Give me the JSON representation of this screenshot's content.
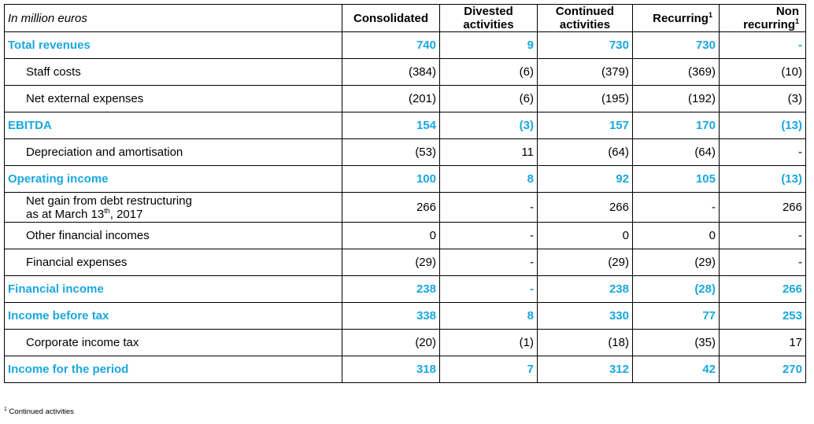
{
  "header": {
    "label": "In million euros",
    "col_consolidated": "Consolidated",
    "col_divested_1": "Divested",
    "col_divested_2": "activities",
    "col_continued_1": "Continued",
    "col_continued_2": "activities",
    "col_recurring": "Recurring",
    "col_recurring_sup": "1",
    "col_nonrec_1": "Non",
    "col_nonrec_2": "recurring",
    "col_nonrec_sup": "1"
  },
  "rows": [
    {
      "label": "Total revenues",
      "consolidated": "740",
      "divested": "9",
      "continued": "730",
      "recurring": "730",
      "nonrecurring": "-"
    },
    {
      "label": "Staff costs",
      "consolidated": "(384)",
      "divested": "(6)",
      "continued": "(379)",
      "recurring": "(369)",
      "nonrecurring": "(10)"
    },
    {
      "label": "Net external expenses",
      "consolidated": "(201)",
      "divested": "(6)",
      "continued": "(195)",
      "recurring": "(192)",
      "nonrecurring": "(3)"
    },
    {
      "label": "EBITDA",
      "consolidated": "154",
      "divested": "(3)",
      "continued": "157",
      "recurring": "170",
      "nonrecurring": "(13)"
    },
    {
      "label": "Depreciation and amortisation",
      "consolidated": "(53)",
      "divested": "11",
      "continued": "(64)",
      "recurring": "(64)",
      "nonrecurring": "-"
    },
    {
      "label": "Operating income",
      "consolidated": "100",
      "divested": "8",
      "continued": "92",
      "recurring": "105",
      "nonrecurring": "(13)"
    },
    {
      "label_line1": "Net gain from debt restructuring",
      "label_line2_pre": "as at March 13",
      "label_line2_sup": "th",
      "label_line2_post": ", 2017",
      "consolidated": "266",
      "divested": "-",
      "continued": "266",
      "recurring": "-",
      "nonrecurring": "266"
    },
    {
      "label": "Other financial incomes",
      "consolidated": "0",
      "divested": "-",
      "continued": "0",
      "recurring": "0",
      "nonrecurring": "-"
    },
    {
      "label": "Financial expenses",
      "consolidated": "(29)",
      "divested": "-",
      "continued": "(29)",
      "recurring": "(29)",
      "nonrecurring": "-"
    },
    {
      "label": "Financial income",
      "consolidated": "238",
      "divested": "-",
      "continued": "238",
      "recurring": "(28)",
      "nonrecurring": "266"
    },
    {
      "label": "Income before tax",
      "consolidated": "338",
      "divested": "8",
      "continued": "330",
      "recurring": "77",
      "nonrecurring": "253"
    },
    {
      "label": "Corporate income tax",
      "consolidated": "(20)",
      "divested": "(1)",
      "continued": "(18)",
      "recurring": "(35)",
      "nonrecurring": "17"
    },
    {
      "label": "Income for the period",
      "consolidated": "318",
      "divested": "7",
      "continued": "312",
      "recurring": "42",
      "nonrecurring": "270"
    }
  ],
  "footnote": {
    "sup": "1",
    "text": "Continued activities"
  },
  "colors": {
    "highlight": "#1aa7df",
    "text": "#000000",
    "border": "#000000"
  }
}
